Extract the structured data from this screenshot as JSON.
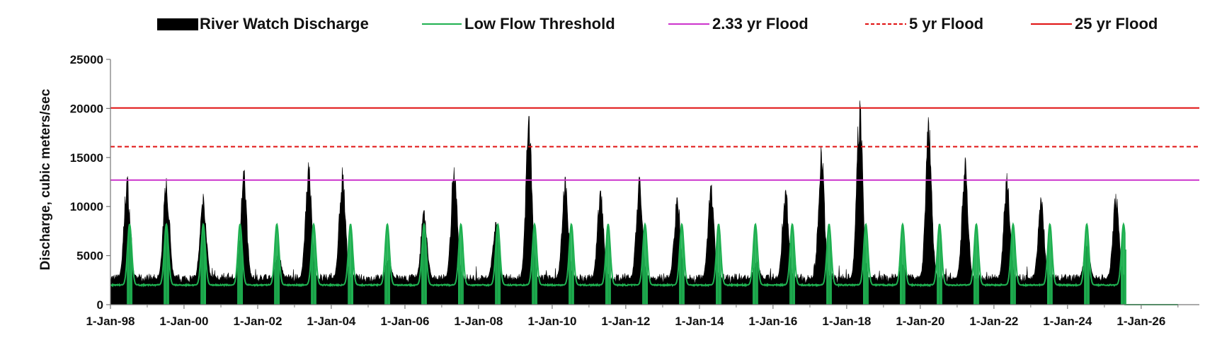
{
  "chart_data": {
    "type": "area",
    "title": "",
    "xlabel": "",
    "ylabel": "Discharge, cubic meters/sec",
    "ylim": [
      0,
      25000
    ],
    "yticks": [
      "0",
      "5000",
      "10000",
      "15000",
      "20000",
      "25000"
    ],
    "xlim": [
      "1998-01-01",
      "2027-08-01"
    ],
    "xticks": [
      "1-Jan-98",
      "1-Jan-00",
      "1-Jan-02",
      "1-Jan-04",
      "1-Jan-06",
      "1-Jan-08",
      "1-Jan-10",
      "1-Jan-12",
      "1-Jan-14",
      "1-Jan-16",
      "1-Jan-18",
      "1-Jan-20",
      "1-Jan-22",
      "1-Jan-24",
      "1-Jan-26"
    ],
    "grid": false,
    "legend_position": "top",
    "series": [
      {
        "name": "River Watch Discharge",
        "kind": "area",
        "color": "#000000",
        "baseflow": 2600,
        "annual_peaks": [
          {
            "date": "1998-06-15",
            "value": 12900
          },
          {
            "date": "1999-07-10",
            "value": 12900
          },
          {
            "date": "2000-07-10",
            "value": 11300
          },
          {
            "date": "2001-08-15",
            "value": 13600
          },
          {
            "date": "2002-07-25",
            "value": 5200
          },
          {
            "date": "2003-05-20",
            "value": 14500
          },
          {
            "date": "2004-04-20",
            "value": 14000
          },
          {
            "date": "2005-07-20",
            "value": 4500
          },
          {
            "date": "2006-07-10",
            "value": 9600
          },
          {
            "date": "2007-05-05",
            "value": 14000
          },
          {
            "date": "2008-06-20",
            "value": 8400
          },
          {
            "date": "2009-05-15",
            "value": 19200
          },
          {
            "date": "2010-05-10",
            "value": 13000
          },
          {
            "date": "2011-04-25",
            "value": 11600
          },
          {
            "date": "2012-05-15",
            "value": 13000
          },
          {
            "date": "2013-05-25",
            "value": 10900
          },
          {
            "date": "2014-04-25",
            "value": 12100
          },
          {
            "date": "2015-07-20",
            "value": 4300
          },
          {
            "date": "2016-05-05",
            "value": 11700
          },
          {
            "date": "2017-04-25",
            "value": 15500
          },
          {
            "date": "2018-05-10",
            "value": 20800
          },
          {
            "date": "2019-07-10",
            "value": 4100
          },
          {
            "date": "2020-03-25",
            "value": 18500
          },
          {
            "date": "2021-03-20",
            "value": 14500
          },
          {
            "date": "2022-05-10",
            "value": 13400
          },
          {
            "date": "2023-04-15",
            "value": 10700
          },
          {
            "date": "2024-07-10",
            "value": 6000
          },
          {
            "date": "2025-04-25",
            "value": 11300
          }
        ],
        "end_date": "2025-07-25"
      },
      {
        "name": "Low Flow Threshold",
        "kind": "line",
        "color": "#1eb050",
        "baseflow": 2000,
        "annual_peak": 8200,
        "peak_day": "07-10",
        "end_value": 0,
        "end_date": "2027-01-01"
      },
      {
        "name": "2.33 yr Flood",
        "kind": "hline",
        "color": "#cc33cc",
        "dashed": false,
        "value": 12700
      },
      {
        "name": "5 yr Flood",
        "kind": "hline",
        "color": "#e01010",
        "dashed": true,
        "value": 16100
      },
      {
        "name": "25 yr Flood",
        "kind": "hline",
        "color": "#e01010",
        "dashed": false,
        "value": 20050
      }
    ]
  }
}
